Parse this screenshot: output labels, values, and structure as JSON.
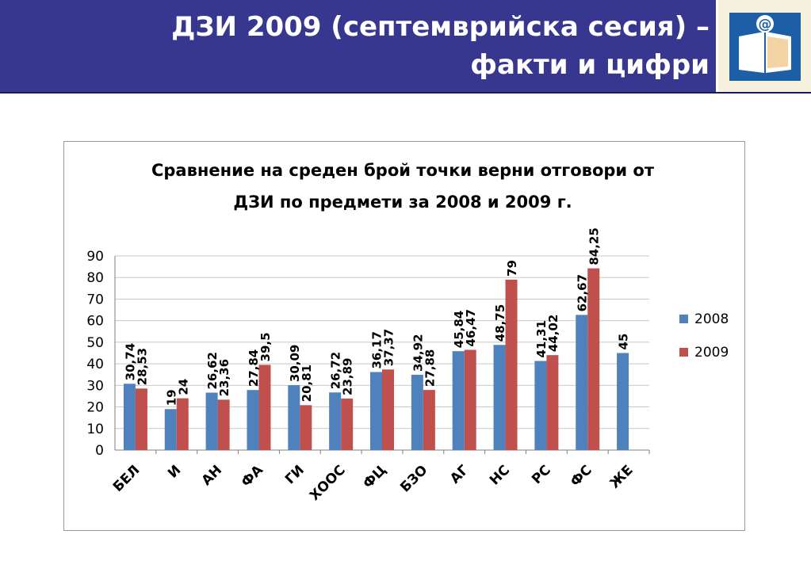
{
  "slide": {
    "title_line1": "ДЗИ 2009 (септемврийска сесия) –",
    "title_line2": "факти и цифри"
  },
  "logo": {
    "icon": "book-at-sign-icon",
    "glyph": "@"
  },
  "colors": {
    "header": "#37378f",
    "series_2008": "#4f81bd",
    "series_2009": "#c0504d",
    "grid": "#c8c8c8"
  },
  "chart_data": {
    "type": "bar",
    "title_line1": "Сравнение на среден брой точки верни отговори от",
    "title_line2": "ДЗИ по предмети за 2008 и 2009 г.",
    "categories": [
      "БЕЛ",
      "И",
      "АН",
      "ФА",
      "ГИ",
      "ХООС",
      "ФЦ",
      "БЗО",
      "АГ",
      "НС",
      "РС",
      "ФС",
      "ЖЕ"
    ],
    "series": [
      {
        "name": "2008",
        "values": [
          30.74,
          19,
          26.62,
          27.84,
          30.09,
          26.72,
          36.17,
          34.92,
          45.84,
          48.75,
          41.31,
          62.67,
          45
        ],
        "labels": [
          "30,74",
          "19",
          "26,62",
          "27,84",
          "30,09",
          "26,72",
          "36,17",
          "34,92",
          "45,84",
          "48,75",
          "41,31",
          "62,67",
          "45"
        ]
      },
      {
        "name": "2009",
        "values": [
          28.53,
          24,
          23.36,
          39.5,
          20.81,
          23.89,
          37.37,
          27.88,
          46.47,
          79,
          44.02,
          84.25,
          null
        ],
        "labels": [
          "28,53",
          "24",
          "23,36",
          "39,5",
          "20,81",
          "23,89",
          "37,37",
          "27,88",
          "46,47",
          "79",
          "44,02",
          "84,25",
          ""
        ]
      }
    ],
    "ylim": [
      0,
      90
    ],
    "yticks": [
      0,
      10,
      20,
      30,
      40,
      50,
      60,
      70,
      80,
      90
    ],
    "grid": true,
    "legend": "right"
  }
}
